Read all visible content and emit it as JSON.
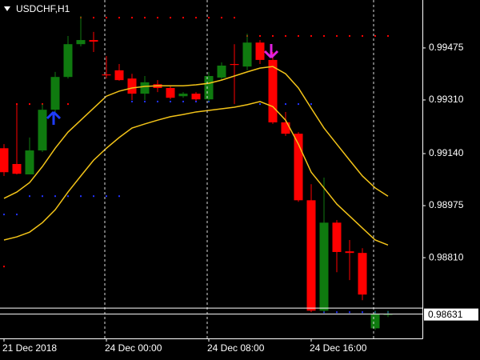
{
  "chart_data": {
    "type": "candlestick",
    "title": "USDCHF,H1",
    "categories": [
      "21 Dec 2018",
      null,
      null,
      null,
      null,
      null,
      null,
      null,
      "24 Dec 00:00",
      null,
      null,
      null,
      null,
      null,
      null,
      null,
      "24 Dec 08:00",
      null,
      null,
      null,
      null,
      null,
      null,
      null,
      "24 Dec 16:00",
      null,
      null,
      null,
      null,
      null,
      null
    ],
    "open": [
      0.99157,
      0.99107,
      0.99074,
      0.9915,
      0.99279,
      0.99383,
      0.99487,
      0.995,
      0.99391,
      0.99404,
      0.99378,
      0.9933,
      0.9936,
      0.99348,
      0.99322,
      0.9933,
      0.99312,
      0.99381,
      0.99424,
      0.99416,
      0.99492,
      0.99437,
      0.99239,
      0.99203,
      0.98992,
      0.98642,
      0.98921,
      0.9883,
      0.98825,
      0.98586,
      0.9863
    ],
    "high": [
      0.9917,
      0.99297,
      0.99191,
      0.99297,
      0.99399,
      0.99513,
      0.99576,
      0.99526,
      0.99449,
      0.99424,
      0.99393,
      0.99386,
      0.99373,
      0.99353,
      0.99335,
      0.99335,
      0.99399,
      0.99429,
      0.99487,
      0.9952,
      0.995,
      0.99462,
      0.99272,
      0.99208,
      0.99043,
      0.99064,
      0.98929,
      0.98866,
      0.9884,
      0.98642,
      0.98642
    ],
    "low": [
      0.99069,
      0.99074,
      0.99074,
      0.99145,
      0.99272,
      0.99378,
      0.9948,
      0.99462,
      0.99378,
      0.99371,
      0.9931,
      0.9931,
      0.99335,
      0.99312,
      0.99317,
      0.99307,
      0.99305,
      0.99373,
      0.99297,
      0.99404,
      0.99424,
      0.99234,
      0.99196,
      0.98987,
      0.98637,
      0.98637,
      0.98764,
      0.98739,
      0.98675,
      0.98581,
      0.98622
    ],
    "close": [
      0.99081,
      0.99076,
      0.9915,
      0.99279,
      0.99383,
      0.99487,
      0.995,
      0.99495,
      0.99388,
      0.99373,
      0.9933,
      0.99366,
      0.99348,
      0.99317,
      0.9933,
      0.99312,
      0.99386,
      0.99419,
      0.99421,
      0.99492,
      0.99437,
      0.99239,
      0.99203,
      0.98992,
      0.98642,
      0.98921,
      0.98828,
      0.98825,
      0.98693,
      0.9863,
      0.98631
    ],
    "up_color": "#0f7a0f",
    "down_color": "#ff0000",
    "lines": [
      {
        "color": "#f2c318",
        "values": [
          0.98998,
          0.99018,
          0.99048,
          0.99099,
          0.99157,
          0.99208,
          0.99246,
          0.99284,
          0.99322,
          0.99338,
          0.99348,
          0.99353,
          0.99355,
          0.99355,
          0.99355,
          0.99358,
          0.99363,
          0.99373,
          0.99386,
          0.99399,
          0.99411,
          0.99416,
          0.99393,
          0.99348,
          0.99284,
          0.99221,
          0.9917,
          0.99119,
          0.99069,
          0.99031,
          0.99005
        ]
      },
      {
        "color": "#f2c318",
        "values": [
          0.98866,
          0.98876,
          0.98891,
          0.98921,
          0.98962,
          0.99018,
          0.99069,
          0.99119,
          0.99157,
          0.99191,
          0.99221,
          0.99234,
          0.99246,
          0.99257,
          0.99264,
          0.99272,
          0.99277,
          0.99282,
          0.99287,
          0.99295,
          0.99305,
          0.99289,
          0.99246,
          0.9917,
          0.99081,
          0.99031,
          0.9898,
          0.98942,
          0.98904,
          0.98866,
          0.9885
        ]
      }
    ],
    "dots": [
      {
        "color": "#ff0000",
        "values": [
          0.98782,
          0.99297,
          0.99297,
          0.99297,
          0.99297,
          0.99297,
          0.99571,
          0.99571,
          0.99571,
          0.99571,
          0.99571,
          0.99571,
          0.99571,
          0.99571,
          0.99571,
          0.99571,
          0.99571,
          0.99571,
          0.99571,
          0.99513,
          0.99513,
          0.99513,
          0.99513,
          0.99513,
          0.99513,
          0.99513,
          0.99513,
          0.99513,
          0.99513,
          0.99513,
          0.99513
        ]
      },
      {
        "color": "#2233ff",
        "values": [
          0.98947,
          0.98947,
          0.99005,
          0.99005,
          0.99005,
          0.99005,
          0.99005,
          0.99005,
          0.99005,
          0.99005,
          0.99305,
          0.99305,
          0.99305,
          0.99305,
          0.99305,
          0.99305,
          0.99305,
          null,
          null,
          null,
          0.99297,
          0.99297,
          0.99297,
          0.99297,
          0.99297,
          0.98637,
          0.98637,
          0.98637,
          0.98637,
          0.98637,
          0.98637
        ]
      }
    ],
    "ylim": [
      0.98554,
      0.99627
    ],
    "yticks": [
      0.99475,
      {
        "value": 0.9931,
        "label": "0.99310"
      },
      {
        "value": 0.9914,
        "label": "0.99140"
      },
      0.98975,
      {
        "value": 0.9881,
        "label": "0.98810"
      }
    ],
    "price_lines": [
      0.9865,
      0.98631
    ],
    "last_price": 0.98631
  }
}
